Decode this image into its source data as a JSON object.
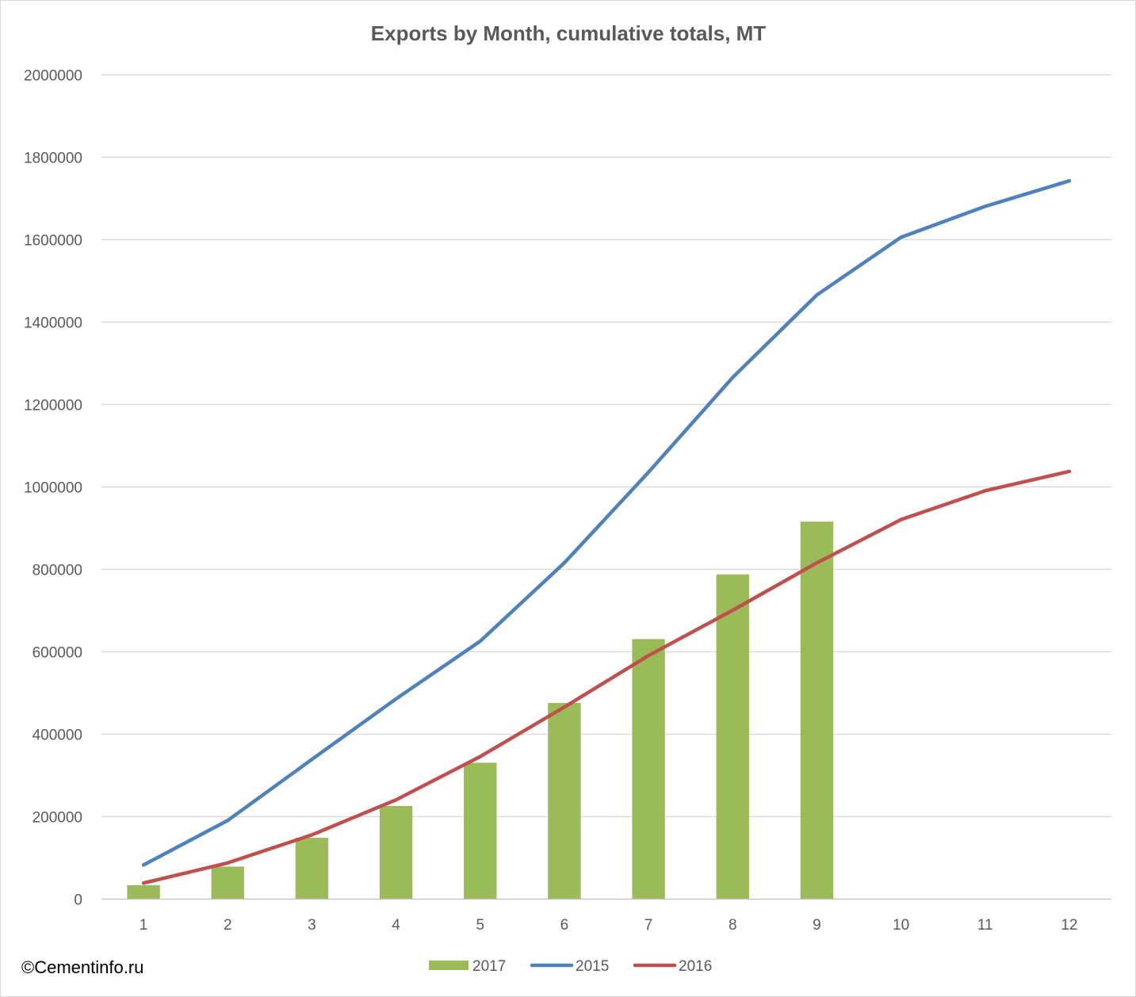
{
  "chart_data": {
    "type": "bar",
    "title": "Exports by Month, cumulative totals, MT",
    "xlabel": "",
    "ylabel": "",
    "categories": [
      "1",
      "2",
      "3",
      "4",
      "5",
      "6",
      "7",
      "8",
      "9",
      "10",
      "11",
      "12"
    ],
    "ylim": [
      0,
      2000000
    ],
    "yticks": [
      "0",
      "200000",
      "400000",
      "600000",
      "800000",
      "1000000",
      "1200000",
      "1400000",
      "1600000",
      "1800000",
      "2000000"
    ],
    "grid": true,
    "legend_position": "bottom",
    "series": [
      {
        "name": "2017",
        "type": "bar",
        "color": "#9BBB59",
        "values": [
          33000,
          78000,
          148000,
          225000,
          330000,
          475000,
          630000,
          787000,
          915000,
          null,
          null,
          null
        ]
      },
      {
        "name": "2015",
        "type": "line",
        "color": "#4F81BD",
        "values": [
          82000,
          190000,
          338000,
          485000,
          625000,
          815000,
          1035000,
          1265000,
          1465000,
          1605000,
          1680000,
          1742000
        ]
      },
      {
        "name": "2016",
        "type": "line",
        "color": "#C0504D",
        "values": [
          38000,
          87000,
          155000,
          240000,
          345000,
          465000,
          590000,
          700000,
          815000,
          920000,
          990000,
          1037000
        ]
      }
    ]
  },
  "watermark": "©Cementinfo.ru"
}
